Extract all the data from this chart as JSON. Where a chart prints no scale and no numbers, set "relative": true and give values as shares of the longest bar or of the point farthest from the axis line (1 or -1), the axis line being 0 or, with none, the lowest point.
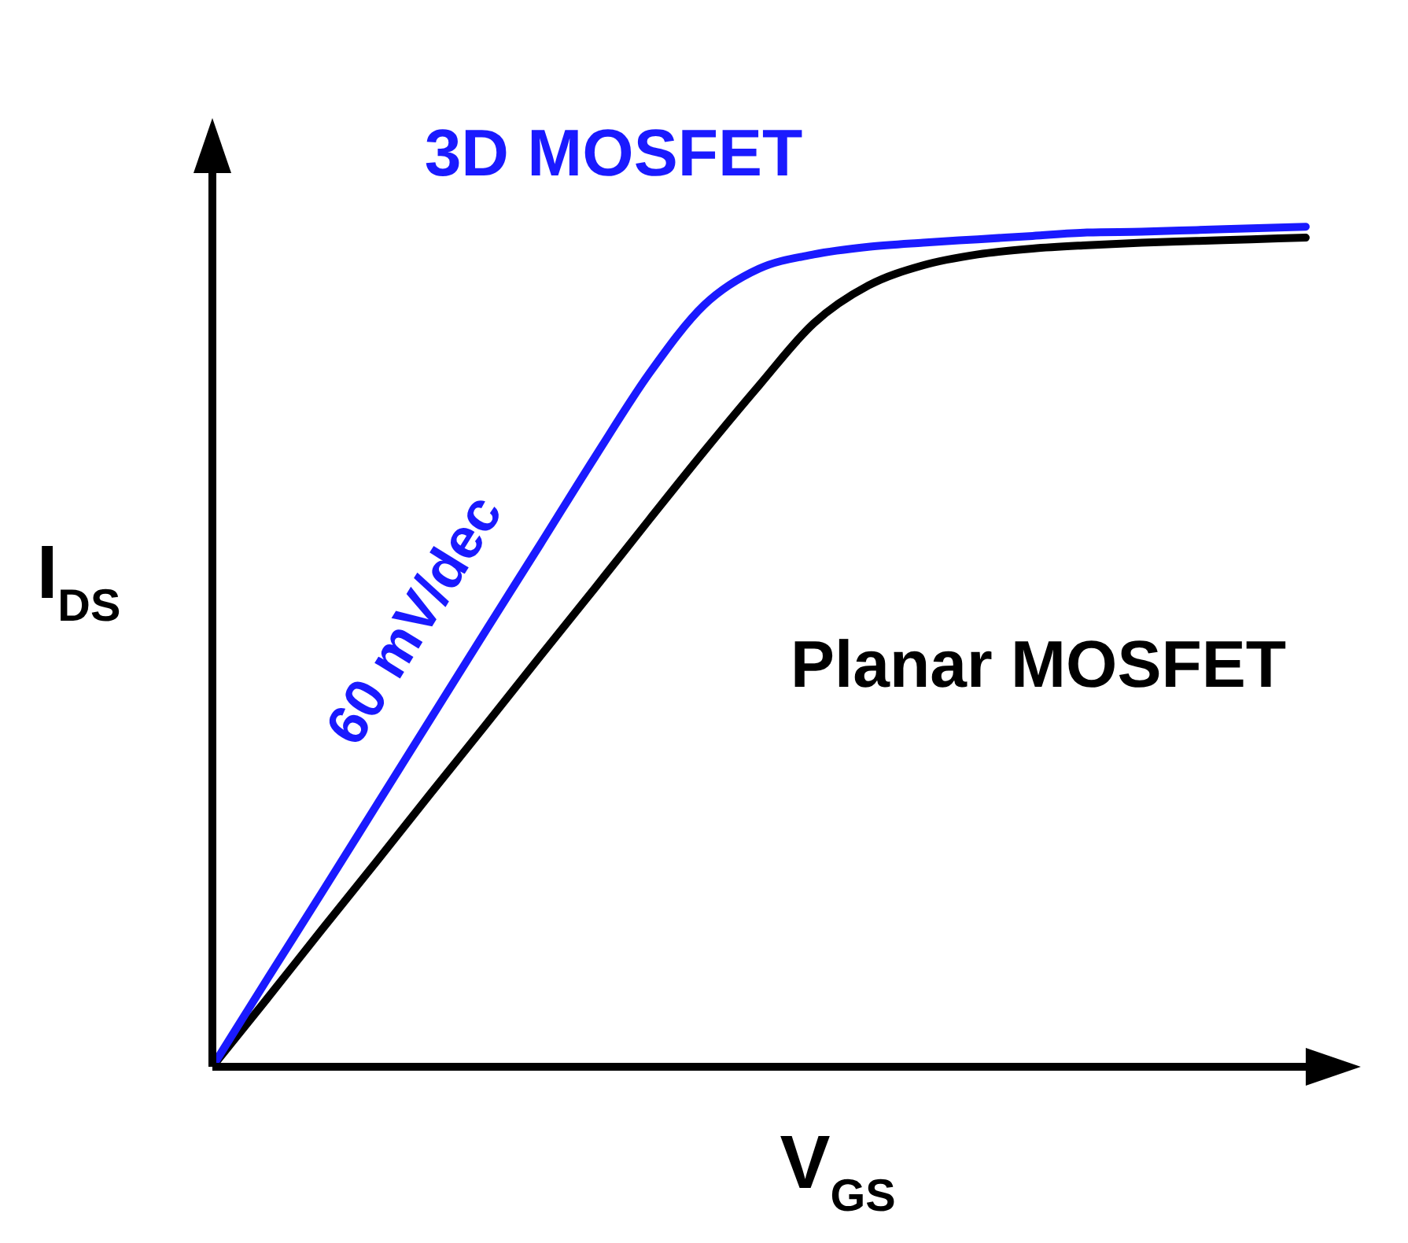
{
  "chart_data": {
    "type": "line",
    "relative": true,
    "xlabel": "V$_{GS}$",
    "ylabel": "I$_{DS}$",
    "legend": false,
    "marker": "none",
    "categories": [
      null,
      null,
      null,
      null,
      null,
      null,
      null,
      null,
      null,
      null,
      null,
      null,
      null,
      null,
      null,
      null,
      null,
      null,
      null,
      null,
      null
    ],
    "series": [
      {
        "name": "3D MOSFET",
        "color": "#1a1aff",
        "values": [
          0,
          0.104,
          0.207,
          0.311,
          0.415,
          0.519,
          0.622,
          0.726,
          0.826,
          0.907,
          0.95,
          0.967,
          0.976,
          0.981,
          0.985,
          0.989,
          0.993,
          0.994,
          0.996,
          0.998,
          1
        ]
      },
      {
        "name": "Planar MOSFET",
        "color": "#000000",
        "values": [
          0,
          0.081,
          0.163,
          0.244,
          0.326,
          0.407,
          0.489,
          0.57,
          0.652,
          0.733,
          0.811,
          0.885,
          0.93,
          0.954,
          0.967,
          0.974,
          0.978,
          0.981,
          0.983,
          0.985,
          0.987
        ]
      }
    ],
    "annotations": [
      "60 mV/dec"
    ]
  }
}
